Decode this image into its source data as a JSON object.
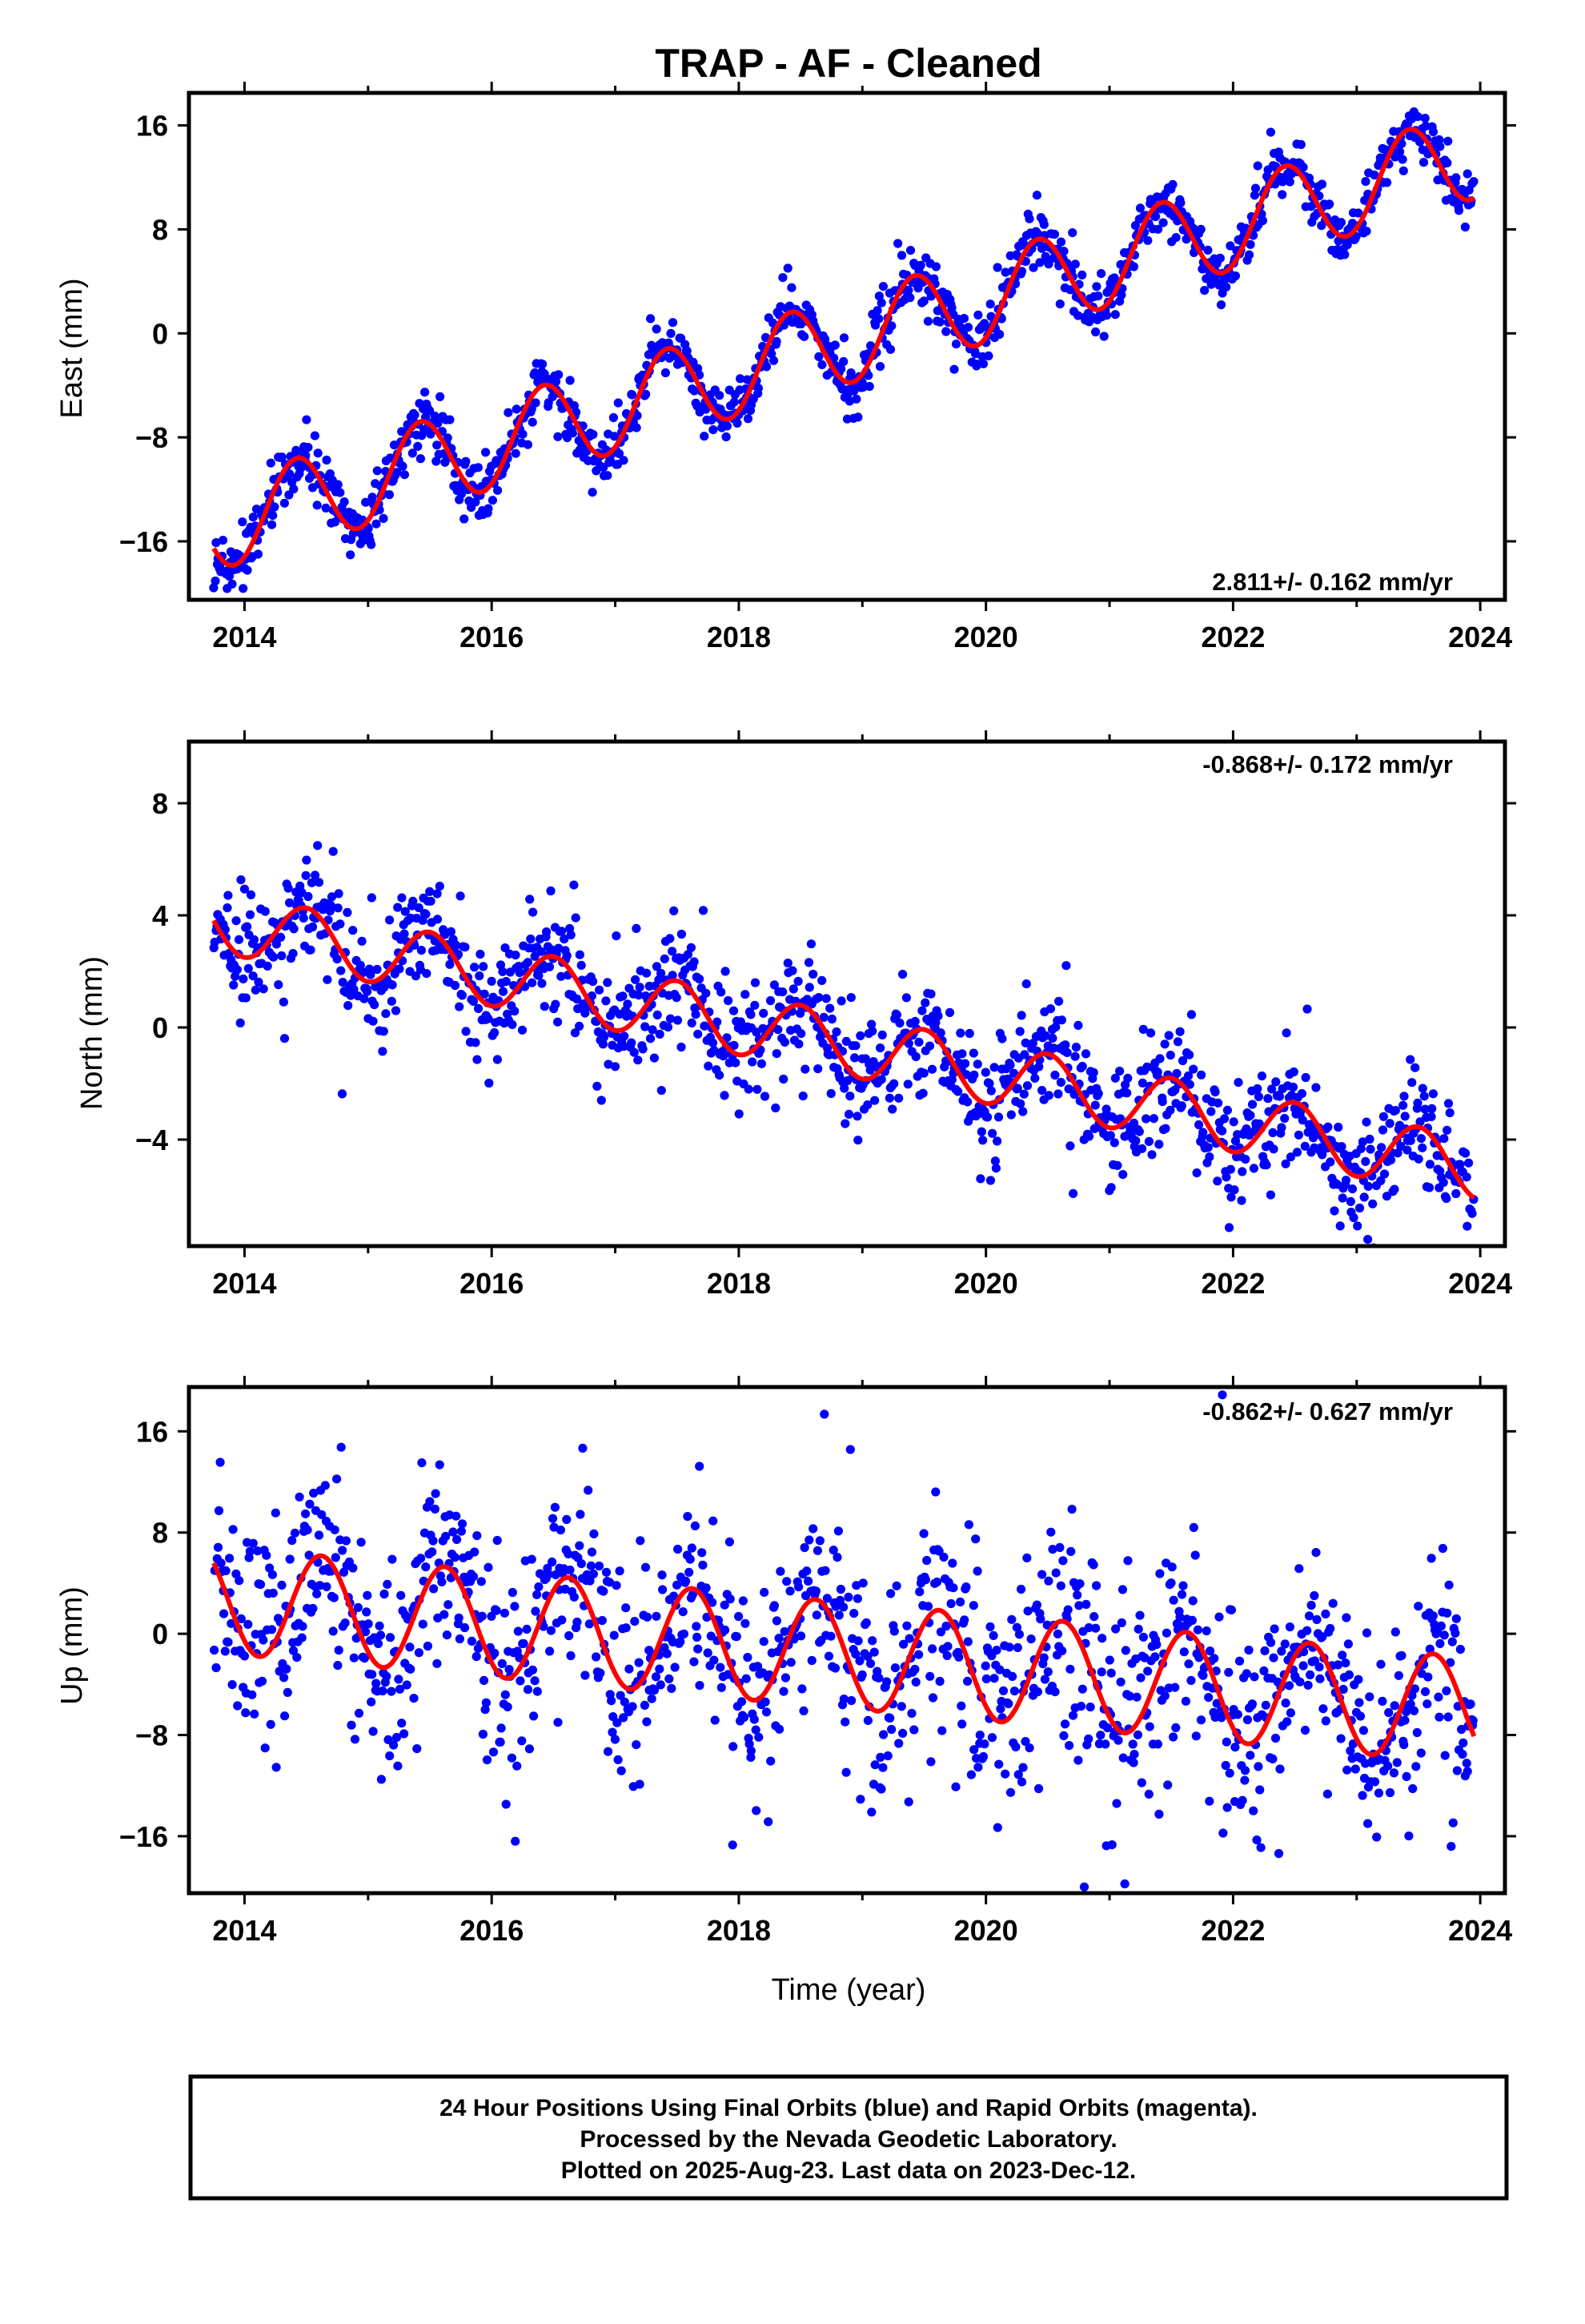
{
  "title": "TRAP  - AF - Cleaned",
  "colors": {
    "points": "#0000ff",
    "model": "#ff0000",
    "axes": "#000000"
  },
  "xlabel": "Time (year)",
  "footer": [
    "24 Hour Positions Using Final Orbits (blue) and Rapid Orbits (magenta).",
    "Processed by the Nevada Geodetic Laboratory.",
    "Plotted on 2025-Aug-23. Last data on 2023-Dec-12."
  ],
  "chart_data": [
    {
      "type": "scatter",
      "component": "east",
      "ylabel": "East (mm)",
      "rate_label": "2.811+/- 0.162 mm/yr",
      "rate_position": "bottom-right",
      "xlim": [
        2013.55,
        2024.2
      ],
      "ylim": [
        -20.5,
        18.5
      ],
      "xticks": [
        "2014",
        "2016",
        "2018",
        "2020",
        "2022",
        "2024"
      ],
      "xtick_values": [
        2014,
        2016,
        2018,
        2020,
        2022,
        2024
      ],
      "yticks": [
        "16",
        "8",
        "0",
        "−8",
        "−16"
      ],
      "ytick_values": [
        16,
        8,
        0,
        -8,
        -16
      ],
      "data_range": [
        2013.75,
        2023.95
      ],
      "model": {
        "trend_mm_per_yr": 2.811,
        "value_at_2014": -14.2,
        "annual_amplitude": 3.4,
        "annual_peak": 0.42,
        "scatter_mm": 1.1
      }
    },
    {
      "type": "scatter",
      "component": "north",
      "ylabel": "North (mm)",
      "rate_label": "-0.868+/- 0.172 mm/yr",
      "rate_position": "top-right",
      "xlim": [
        2013.55,
        2024.2
      ],
      "ylim": [
        -7.8,
        10.2
      ],
      "xticks": [
        "2014",
        "2016",
        "2018",
        "2020",
        "2022",
        "2024"
      ],
      "xtick_values": [
        2014,
        2016,
        2018,
        2020,
        2022,
        2024
      ],
      "yticks": [
        "8",
        "4",
        "0",
        "−4"
      ],
      "ytick_values": [
        8,
        4,
        0,
        -4
      ],
      "data_range": [
        2013.75,
        2023.95
      ],
      "model": {
        "trend_mm_per_yr": -0.868,
        "value_at_2014": 3.6,
        "annual_amplitude": 1.1,
        "annual_peak": 0.5,
        "scatter_mm": 1.0
      }
    },
    {
      "type": "scatter",
      "component": "up",
      "ylabel": "Up (mm)",
      "rate_label": "-0.862+/- 0.627 mm/yr",
      "rate_position": "top-right",
      "xlim": [
        2013.55,
        2024.2
      ],
      "ylim": [
        -20.5,
        19.5
      ],
      "xticks": [
        "2014",
        "2016",
        "2018",
        "2020",
        "2022",
        "2024"
      ],
      "xtick_values": [
        2014,
        2016,
        2018,
        2020,
        2022,
        2024
      ],
      "yticks": [
        "16",
        "8",
        "0",
        "−8",
        "−16"
      ],
      "ytick_values": [
        16,
        8,
        0,
        -8,
        -16
      ],
      "data_range": [
        2013.75,
        2023.95
      ],
      "model": {
        "trend_mm_per_yr": -0.862,
        "value_at_2014": 2.5,
        "annual_amplitude": 4.2,
        "annual_peak": 0.62,
        "scatter_mm": 4.2
      }
    }
  ]
}
